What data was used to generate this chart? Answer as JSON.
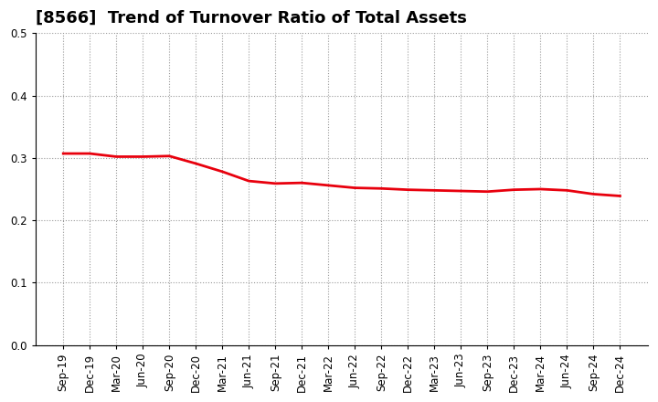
{
  "title": "[8566]  Trend of Turnover Ratio of Total Assets",
  "ylim": [
    0.0,
    0.5
  ],
  "yticks": [
    0.0,
    0.1,
    0.2,
    0.3,
    0.4,
    0.5
  ],
  "line_color": "#e8000d",
  "background_color": "#ffffff",
  "plot_bg_color": "#ffffff",
  "grid_color": "#999999",
  "categories": [
    "Sep-19",
    "Dec-19",
    "Mar-20",
    "Jun-20",
    "Sep-20",
    "Dec-20",
    "Mar-21",
    "Jun-21",
    "Sep-21",
    "Dec-21",
    "Mar-22",
    "Jun-22",
    "Sep-22",
    "Dec-22",
    "Mar-23",
    "Jun-23",
    "Sep-23",
    "Dec-23",
    "Mar-24",
    "Jun-24",
    "Sep-24",
    "Dec-24"
  ],
  "values": [
    0.307,
    0.307,
    0.302,
    0.302,
    0.303,
    0.291,
    0.278,
    0.263,
    0.259,
    0.26,
    0.256,
    0.252,
    0.251,
    0.249,
    0.248,
    0.247,
    0.246,
    0.249,
    0.25,
    0.248,
    0.242,
    0.239
  ],
  "title_fontsize": 13,
  "tick_fontsize": 8.5,
  "line_width": 2.0,
  "figsize": [
    7.2,
    4.4
  ],
  "dpi": 100
}
